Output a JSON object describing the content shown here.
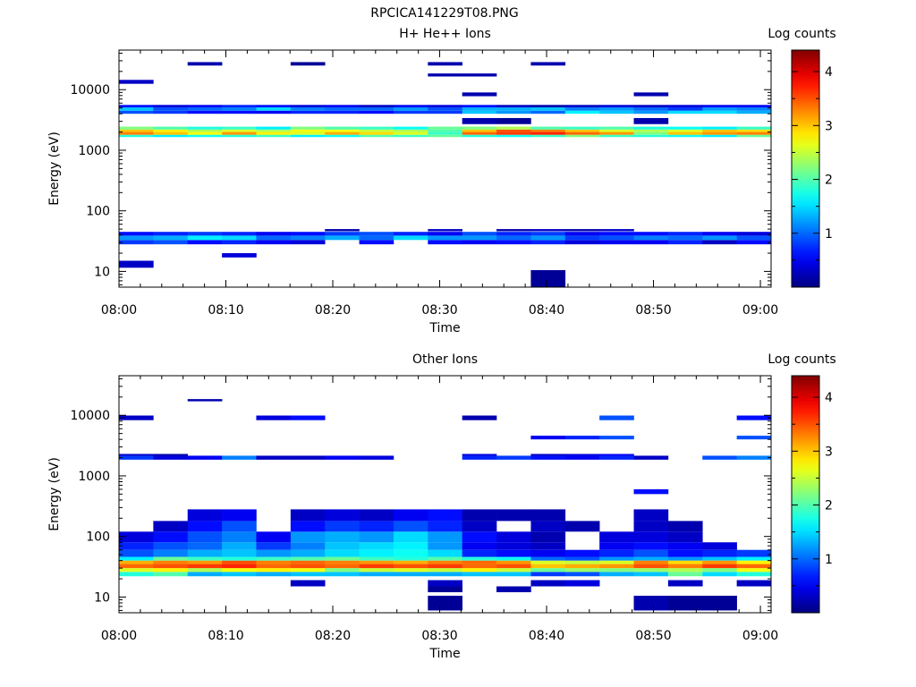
{
  "figure_title": "RPCICA141229T08.PNG",
  "colorbar": {
    "label": "Log counts",
    "ticks": [
      1,
      2,
      3,
      4
    ],
    "range": [
      0,
      4.4
    ],
    "colormap": "jet"
  },
  "chart_data": [
    {
      "type": "heatmap",
      "title": "H+ He++ Ions",
      "xlabel": "Time",
      "ylabel": "Energy (eV)",
      "yscale": "log",
      "ylim": [
        5.5,
        45000
      ],
      "xlim": [
        "08:00",
        "09:01"
      ],
      "xticks": [
        "08:00",
        "08:10",
        "08:20",
        "08:30",
        "08:40",
        "08:50",
        "09:00"
      ],
      "yticks": [
        10,
        100,
        1000,
        10000
      ],
      "colorbar_label": "Log counts",
      "columns": 19,
      "bands": [
        {
          "e_low": 11.5,
          "e_high": 15,
          "values": [
            0.3,
            null,
            null,
            null,
            null,
            null,
            null,
            null,
            null,
            null,
            null,
            null,
            null,
            null,
            null,
            null,
            null,
            null,
            null
          ]
        },
        {
          "e_low": 17,
          "e_high": 20,
          "values": [
            null,
            null,
            null,
            0.4,
            null,
            null,
            null,
            null,
            null,
            null,
            null,
            null,
            null,
            null,
            null,
            null,
            null,
            null,
            null
          ]
        },
        {
          "e_low": 5.5,
          "e_high": 10.5,
          "values": [
            null,
            null,
            null,
            null,
            null,
            null,
            null,
            null,
            null,
            null,
            null,
            null,
            0.1,
            null,
            null,
            null,
            null,
            null,
            null
          ]
        },
        {
          "e_low": 28,
          "e_high": 33,
          "values": [
            0.8,
            0.9,
            0.6,
            0.7,
            0.5,
            0.4,
            null,
            0.6,
            null,
            0.6,
            0.5,
            0.6,
            0.7,
            0.4,
            0.5,
            0.5,
            0.7,
            0.3,
            0.6
          ]
        },
        {
          "e_low": 33,
          "e_high": 39,
          "values": [
            1.2,
            1.3,
            1.6,
            1.5,
            1.0,
            1.1,
            1.3,
            1.0,
            1.5,
            1.2,
            1.2,
            1.0,
            1.2,
            0.8,
            0.9,
            1.1,
            1.0,
            1.2,
            0.9
          ]
        },
        {
          "e_low": 39,
          "e_high": 45,
          "values": [
            0.6,
            0.7,
            0.8,
            0.7,
            0.5,
            0.6,
            0.8,
            0.9,
            0.7,
            0.5,
            0.9,
            0.7,
            0.8,
            0.5,
            0.6,
            0.6,
            0.7,
            0.5,
            0.4
          ]
        },
        {
          "e_low": 1650,
          "e_high": 1800,
          "values": [
            1.8,
            1.6,
            1.7,
            1.8,
            1.9,
            1.6,
            1.7,
            2.0,
            1.9,
            2.1,
            1.8,
            1.7,
            1.9,
            2.2,
            1.9,
            1.8,
            1.7,
            1.6,
            2.1
          ]
        },
        {
          "e_low": 1800,
          "e_high": 2000,
          "values": [
            3.3,
            3.0,
            2.7,
            3.2,
            2.8,
            2.6,
            3.1,
            2.9,
            2.6,
            1.9,
            3.4,
            3.6,
            3.7,
            3.4,
            3.2,
            2.2,
            3.0,
            3.2,
            3.3
          ]
        },
        {
          "e_low": 2000,
          "e_high": 2200,
          "values": [
            3.0,
            2.8,
            2.4,
            2.6,
            2.4,
            2.7,
            2.7,
            2.5,
            2.4,
            2.0,
            3.0,
            3.5,
            3.3,
            3.0,
            2.6,
            2.4,
            2.6,
            3.0,
            2.9
          ]
        },
        {
          "e_low": 2200,
          "e_high": 2450,
          "values": [
            2.2,
            2.0,
            1.8,
            1.9,
            1.6,
            2.2,
            2.0,
            1.9,
            1.7,
            2.1,
            2.2,
            2.4,
            2.0,
            1.9,
            2.0,
            1.8,
            1.7,
            1.6,
            1.9
          ]
        },
        {
          "e_low": 4000,
          "e_high": 4500,
          "values": [
            0.9,
            0.8,
            0.6,
            0.6,
            0.5,
            0.7,
            0.7,
            0.6,
            0.8,
            0.8,
            1.4,
            1.2,
            1.0,
            1.6,
            1.4,
            1.2,
            1.5,
            1.5,
            1.3
          ]
        },
        {
          "e_low": 4500,
          "e_high": 5100,
          "values": [
            1.4,
            0.9,
            1.0,
            1.1,
            1.5,
            1.1,
            1.0,
            1.0,
            1.2,
            0.9,
            1.3,
            1.3,
            1.4,
            1.1,
            1.2,
            1.0,
            0.8,
            1.2,
            1.1
          ]
        },
        {
          "e_low": 5100,
          "e_high": 5600,
          "values": [
            0.6,
            0.4,
            0.5,
            0.7,
            0.6,
            0.4,
            0.5,
            0.3,
            0.5,
            0.4,
            0.6,
            0.3,
            0.2,
            0.3,
            0.4,
            0.3,
            0.4,
            0.5,
            0.5
          ]
        },
        {
          "e_low": 12500,
          "e_high": 14500,
          "values": [
            0.3,
            null,
            null,
            null,
            null,
            null,
            null,
            null,
            null,
            null,
            null,
            null,
            null,
            null,
            null,
            null,
            null,
            null,
            null
          ]
        },
        {
          "e_low": 2700,
          "e_high": 3400,
          "values": [
            null,
            null,
            null,
            null,
            null,
            null,
            null,
            null,
            null,
            null,
            0.2,
            0.1,
            null,
            null,
            null,
            0.2,
            null,
            null,
            null
          ]
        },
        {
          "e_low": 46,
          "e_high": 50,
          "values": [
            null,
            null,
            null,
            null,
            null,
            null,
            0.2,
            null,
            null,
            0.3,
            null,
            0.2,
            0.3,
            0.2,
            0.3,
            null,
            null,
            null,
            null
          ]
        },
        {
          "e_low": 7800,
          "e_high": 9000,
          "values": [
            null,
            null,
            null,
            null,
            null,
            null,
            null,
            null,
            null,
            null,
            0.2,
            null,
            null,
            null,
            null,
            0.2,
            null,
            null,
            null
          ]
        },
        {
          "e_low": 16500,
          "e_high": 18500,
          "values": [
            null,
            null,
            null,
            null,
            null,
            null,
            null,
            null,
            null,
            0.2,
            0.2,
            null,
            null,
            null,
            null,
            null,
            null,
            null,
            null
          ]
        },
        {
          "e_low": 25000,
          "e_high": 28500,
          "values": [
            null,
            null,
            0.2,
            null,
            null,
            0.1,
            null,
            null,
            null,
            0.2,
            null,
            null,
            0.2,
            null,
            null,
            null,
            null,
            null,
            null
          ]
        }
      ]
    },
    {
      "type": "heatmap",
      "title": "Other Ions",
      "xlabel": "Time",
      "ylabel": "Energy (eV)",
      "yscale": "log",
      "ylim": [
        5.5,
        45000
      ],
      "xlim": [
        "08:00",
        "09:01"
      ],
      "xticks": [
        "08:00",
        "08:10",
        "08:20",
        "08:30",
        "08:40",
        "08:50",
        "09:00"
      ],
      "yticks": [
        10,
        100,
        1000,
        10000
      ],
      "colorbar_label": "Log counts",
      "columns": 19,
      "bands": [
        {
          "e_low": 22,
          "e_high": 26,
          "values": [
            1.8,
            2.0,
            1.3,
            1.4,
            1.3,
            1.4,
            1.4,
            1.3,
            1.3,
            1.3,
            1.4,
            1.4,
            0.8,
            0.9,
            1.3,
            1.4,
            2.1,
            1.5,
            1.8
          ]
        },
        {
          "e_low": 26,
          "e_high": 30,
          "values": [
            2.6,
            2.8,
            2.4,
            2.7,
            2.8,
            2.7,
            2.2,
            2.5,
            2.6,
            2.5,
            2.8,
            2.5,
            2.1,
            2.3,
            2.2,
            2.3,
            2.4,
            2.2,
            2.7
          ]
        },
        {
          "e_low": 30,
          "e_high": 35,
          "values": [
            3.4,
            3.5,
            3.6,
            3.7,
            3.4,
            3.5,
            3.4,
            3.6,
            3.5,
            3.6,
            3.4,
            3.5,
            3.0,
            3.1,
            3.2,
            3.5,
            3.3,
            3.6,
            3.4
          ]
        },
        {
          "e_low": 35,
          "e_high": 40,
          "values": [
            3.1,
            3.3,
            3.2,
            3.5,
            3.3,
            3.4,
            3.3,
            3.2,
            3.1,
            3.3,
            3.4,
            3.2,
            2.6,
            2.5,
            2.6,
            3.3,
            2.9,
            3.2,
            2.8
          ]
        },
        {
          "e_low": 40,
          "e_high": 46,
          "values": [
            1.6,
            2.1,
            1.9,
            1.8,
            1.9,
            2.0,
            2.1,
            1.9,
            1.8,
            2.0,
            1.8,
            1.7,
            1.0,
            0.9,
            1.2,
            1.3,
            1.2,
            1.4,
            1.6
          ]
        },
        {
          "e_low": 46,
          "e_high": 60,
          "values": [
            0.9,
            1.1,
            1.3,
            1.4,
            1.2,
            1.3,
            1.5,
            1.6,
            1.7,
            1.5,
            0.7,
            0.6,
            0.5,
            0.6,
            0.7,
            0.9,
            0.6,
            0.7,
            0.8
          ]
        },
        {
          "e_low": 60,
          "e_high": 80,
          "values": [
            0.7,
            0.9,
            1.0,
            1.3,
            0.8,
            1.1,
            1.4,
            1.5,
            1.6,
            1.2,
            0.5,
            0.4,
            0.3,
            null,
            0.5,
            0.6,
            0.5,
            0.4,
            null
          ]
        },
        {
          "e_low": 80,
          "e_high": 120,
          "values": [
            0.4,
            0.6,
            0.9,
            1.1,
            0.5,
            1.2,
            1.3,
            1.2,
            1.5,
            1.2,
            0.6,
            0.4,
            0.2,
            null,
            0.4,
            0.4,
            0.3,
            null,
            null
          ]
        },
        {
          "e_low": 120,
          "e_high": 180,
          "values": [
            null,
            0.3,
            0.6,
            0.9,
            null,
            0.6,
            0.8,
            0.7,
            0.9,
            0.7,
            0.3,
            null,
            0.3,
            0.2,
            null,
            0.3,
            0.2,
            null,
            null
          ]
        },
        {
          "e_low": 180,
          "e_high": 280,
          "values": [
            null,
            null,
            0.4,
            0.5,
            null,
            0.3,
            0.4,
            0.3,
            0.5,
            0.6,
            0.2,
            0.2,
            0.2,
            null,
            null,
            0.3,
            null,
            null,
            null
          ]
        },
        {
          "e_low": 15,
          "e_high": 19,
          "values": [
            null,
            null,
            null,
            null,
            null,
            0.3,
            null,
            null,
            null,
            0.3,
            null,
            null,
            0.3,
            0.4,
            null,
            null,
            0.3,
            null,
            0.3
          ]
        },
        {
          "e_low": 12,
          "e_high": 15,
          "values": [
            null,
            null,
            null,
            null,
            null,
            null,
            null,
            null,
            null,
            0.1,
            null,
            0.2,
            null,
            null,
            null,
            null,
            null,
            null,
            null
          ]
        },
        {
          "e_low": 6,
          "e_high": 10.5,
          "values": [
            null,
            null,
            null,
            null,
            null,
            null,
            null,
            null,
            null,
            0.1,
            null,
            null,
            null,
            null,
            null,
            0.2,
            0.1,
            0.1,
            null
          ]
        },
        {
          "e_low": 1850,
          "e_high": 2150,
          "values": [
            0.8,
            0.4,
            0.5,
            1.1,
            0.3,
            0.3,
            0.5,
            0.4,
            null,
            null,
            0.7,
            0.8,
            0.6,
            0.5,
            0.7,
            0.3,
            null,
            0.9,
            1.1
          ]
        },
        {
          "e_low": 2150,
          "e_high": 2300,
          "values": [
            0.3,
            0.2,
            null,
            null,
            null,
            null,
            null,
            null,
            null,
            null,
            0.4,
            null,
            0.3,
            0.4,
            0.5,
            null,
            null,
            null,
            null
          ]
        },
        {
          "e_low": 4000,
          "e_high": 4600,
          "values": [
            null,
            null,
            null,
            null,
            null,
            null,
            null,
            null,
            null,
            null,
            null,
            null,
            0.5,
            0.7,
            0.9,
            null,
            null,
            null,
            0.9
          ]
        },
        {
          "e_low": 8300,
          "e_high": 9900,
          "values": [
            0.3,
            null,
            null,
            null,
            0.4,
            0.6,
            null,
            null,
            null,
            null,
            0.2,
            null,
            null,
            null,
            0.9,
            null,
            null,
            null,
            0.6
          ]
        },
        {
          "e_low": 500,
          "e_high": 600,
          "values": [
            null,
            null,
            null,
            null,
            null,
            null,
            null,
            null,
            null,
            null,
            null,
            null,
            null,
            null,
            null,
            0.6,
            null,
            null,
            null
          ]
        },
        {
          "e_low": 17000,
          "e_high": 18500,
          "values": [
            null,
            null,
            0.2,
            null,
            null,
            null,
            null,
            null,
            null,
            null,
            null,
            null,
            null,
            null,
            null,
            null,
            null,
            null,
            null
          ]
        }
      ]
    }
  ]
}
